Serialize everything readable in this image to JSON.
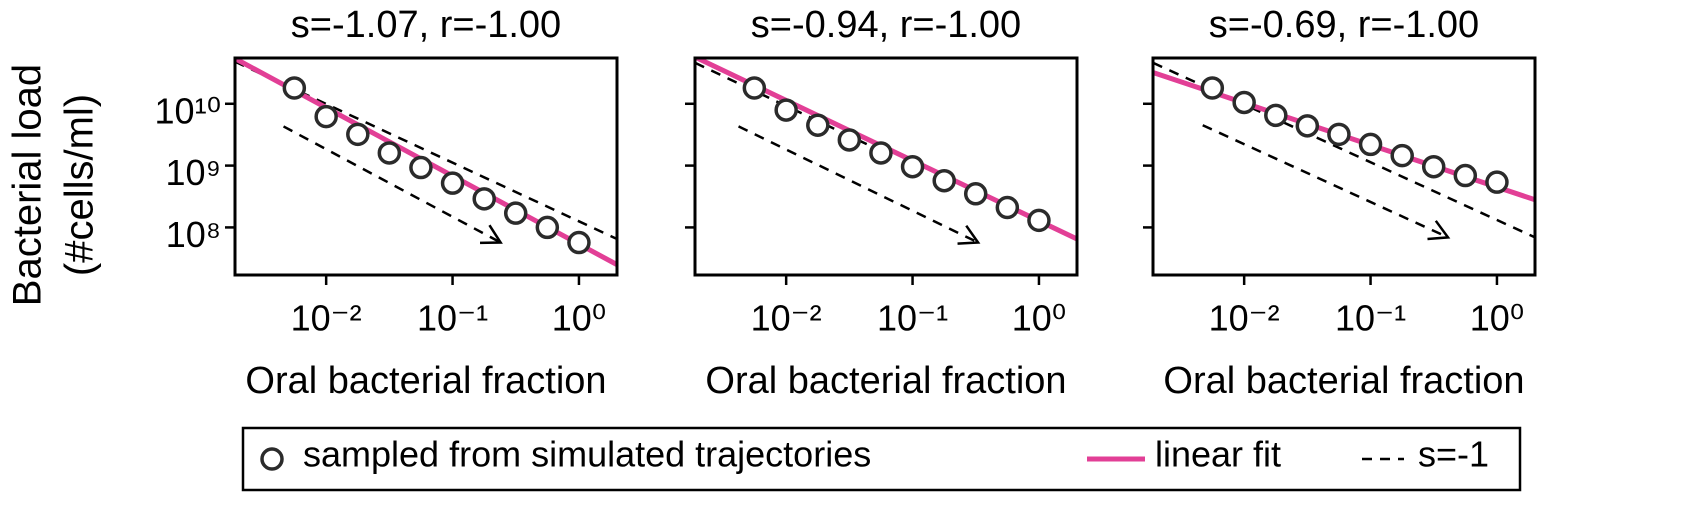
{
  "chart_data": [
    {
      "type": "scatter",
      "title": "s=-1.07, r=-1.00",
      "xlabel": "Oral bacterial fraction",
      "ylabel": [
        "Bacterial load",
        "(#cells/ml)"
      ],
      "xscale": "log",
      "yscale": "log",
      "xlim": [
        0.0019,
        2.0
      ],
      "ylim": [
        17000000,
        55000000000
      ],
      "xticks": [
        {
          "value": 0.01,
          "label": "10⁻²"
        },
        {
          "value": 0.1,
          "label": "10⁻¹"
        },
        {
          "value": 1,
          "label": "10⁰"
        }
      ],
      "yticks": [
        {
          "value": 100000000,
          "label": "10⁸"
        },
        {
          "value": 1000000000,
          "label": "10⁹"
        },
        {
          "value": 10000000000,
          "label": "10¹⁰"
        }
      ],
      "ytick_labels": true,
      "points": {
        "x": [
          0.0056,
          0.01,
          0.0178,
          0.0316,
          0.0562,
          0.1,
          0.178,
          0.316,
          0.562,
          1
        ],
        "values": [
          18000000000,
          6200000000,
          3200000000,
          1600000000,
          930000000,
          520000000,
          290000000,
          170000000,
          100000000,
          57000000
        ]
      },
      "fit": {
        "x": [
          0.0019,
          2.0
        ],
        "values": [
          54000000000,
          25000000
        ]
      },
      "reference": [
        {
          "x": [
            0.0019,
            2.0
          ],
          "values": [
            48000000000,
            65000000
          ]
        },
        {
          "x": [
            0.0046,
            0.24
          ],
          "values": [
            4300000000,
            57000000
          ]
        }
      ]
    },
    {
      "type": "scatter",
      "title": "s=-0.94, r=-1.00",
      "xlabel": "Oral bacterial fraction",
      "xscale": "log",
      "yscale": "log",
      "xlim": [
        0.0019,
        2.0
      ],
      "ylim": [
        17000000,
        55000000000
      ],
      "xticks": [
        {
          "value": 0.01,
          "label": "10⁻²"
        },
        {
          "value": 0.1,
          "label": "10⁻¹"
        },
        {
          "value": 1,
          "label": "10⁰"
        }
      ],
      "yticks": [
        100000000,
        1000000000,
        10000000000
      ],
      "ytick_labels": false,
      "points": {
        "x": [
          0.0056,
          0.01,
          0.0178,
          0.0316,
          0.0562,
          0.1,
          0.178,
          0.316,
          0.562,
          1
        ],
        "values": [
          18000000000,
          7900000000,
          4500000000,
          2600000000,
          1600000000,
          960000000,
          570000000,
          350000000,
          210000000,
          130000000
        ]
      },
      "fit": {
        "x": [
          0.0019,
          2.0
        ],
        "values": [
          57000000000,
          65000000
        ]
      },
      "reference": [
        {
          "x": [
            0.0019,
            0.054
          ],
          "values": [
            46000000000,
            1800000000
          ]
        },
        {
          "x": [
            0.0042,
            0.33
          ],
          "values": [
            4300000000,
            57000000
          ]
        }
      ]
    },
    {
      "type": "scatter",
      "title": "s=-0.69, r=-1.00",
      "xlabel": "Oral bacterial fraction",
      "xscale": "log",
      "yscale": "log",
      "xlim": [
        0.0019,
        2.0
      ],
      "ylim": [
        17000000,
        55000000000
      ],
      "xticks": [
        {
          "value": 0.01,
          "label": "10⁻²"
        },
        {
          "value": 0.1,
          "label": "10⁻¹"
        },
        {
          "value": 1,
          "label": "10⁰"
        }
      ],
      "yticks": [
        100000000,
        1000000000,
        10000000000
      ],
      "ytick_labels": false,
      "points": {
        "x": [
          0.0056,
          0.01,
          0.0178,
          0.0316,
          0.0562,
          0.1,
          0.178,
          0.316,
          0.562,
          1
        ],
        "values": [
          18000000000,
          10500000000,
          6500000000,
          4400000000,
          3200000000,
          2200000000,
          1450000000,
          960000000,
          690000000,
          540000000
        ]
      },
      "fit": {
        "x": [
          0.0019,
          2.0
        ],
        "values": [
          32000000000,
          280000000
        ]
      },
      "reference": [
        {
          "x": [
            0.0019,
            2.0
          ],
          "values": [
            46000000000,
            69000000
          ]
        },
        {
          "x": [
            0.0047,
            0.41
          ],
          "values": [
            4500000000,
            69000000
          ]
        }
      ]
    }
  ],
  "legend": {
    "entries": [
      {
        "label": "sampled from simulated trajectories"
      },
      {
        "label": "linear fit",
        "color": "#e23f96"
      },
      {
        "label": "s=-1"
      }
    ]
  },
  "point_color": "#2b2b2b"
}
